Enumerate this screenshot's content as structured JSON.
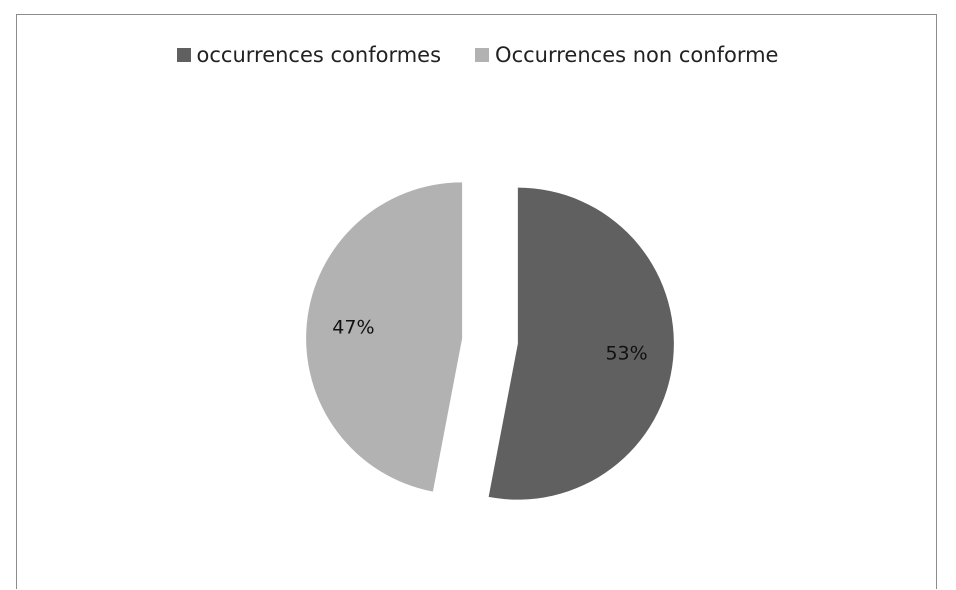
{
  "chart_data": {
    "type": "pie",
    "title": "",
    "legend_position": "top",
    "slices": [
      {
        "name": "occurrences conformes",
        "value": 53,
        "label": "53%",
        "color": "#606060"
      },
      {
        "name": "Occurrences non conforme",
        "value": 47,
        "label": "47%",
        "color": "#b2b2b2"
      }
    ]
  }
}
